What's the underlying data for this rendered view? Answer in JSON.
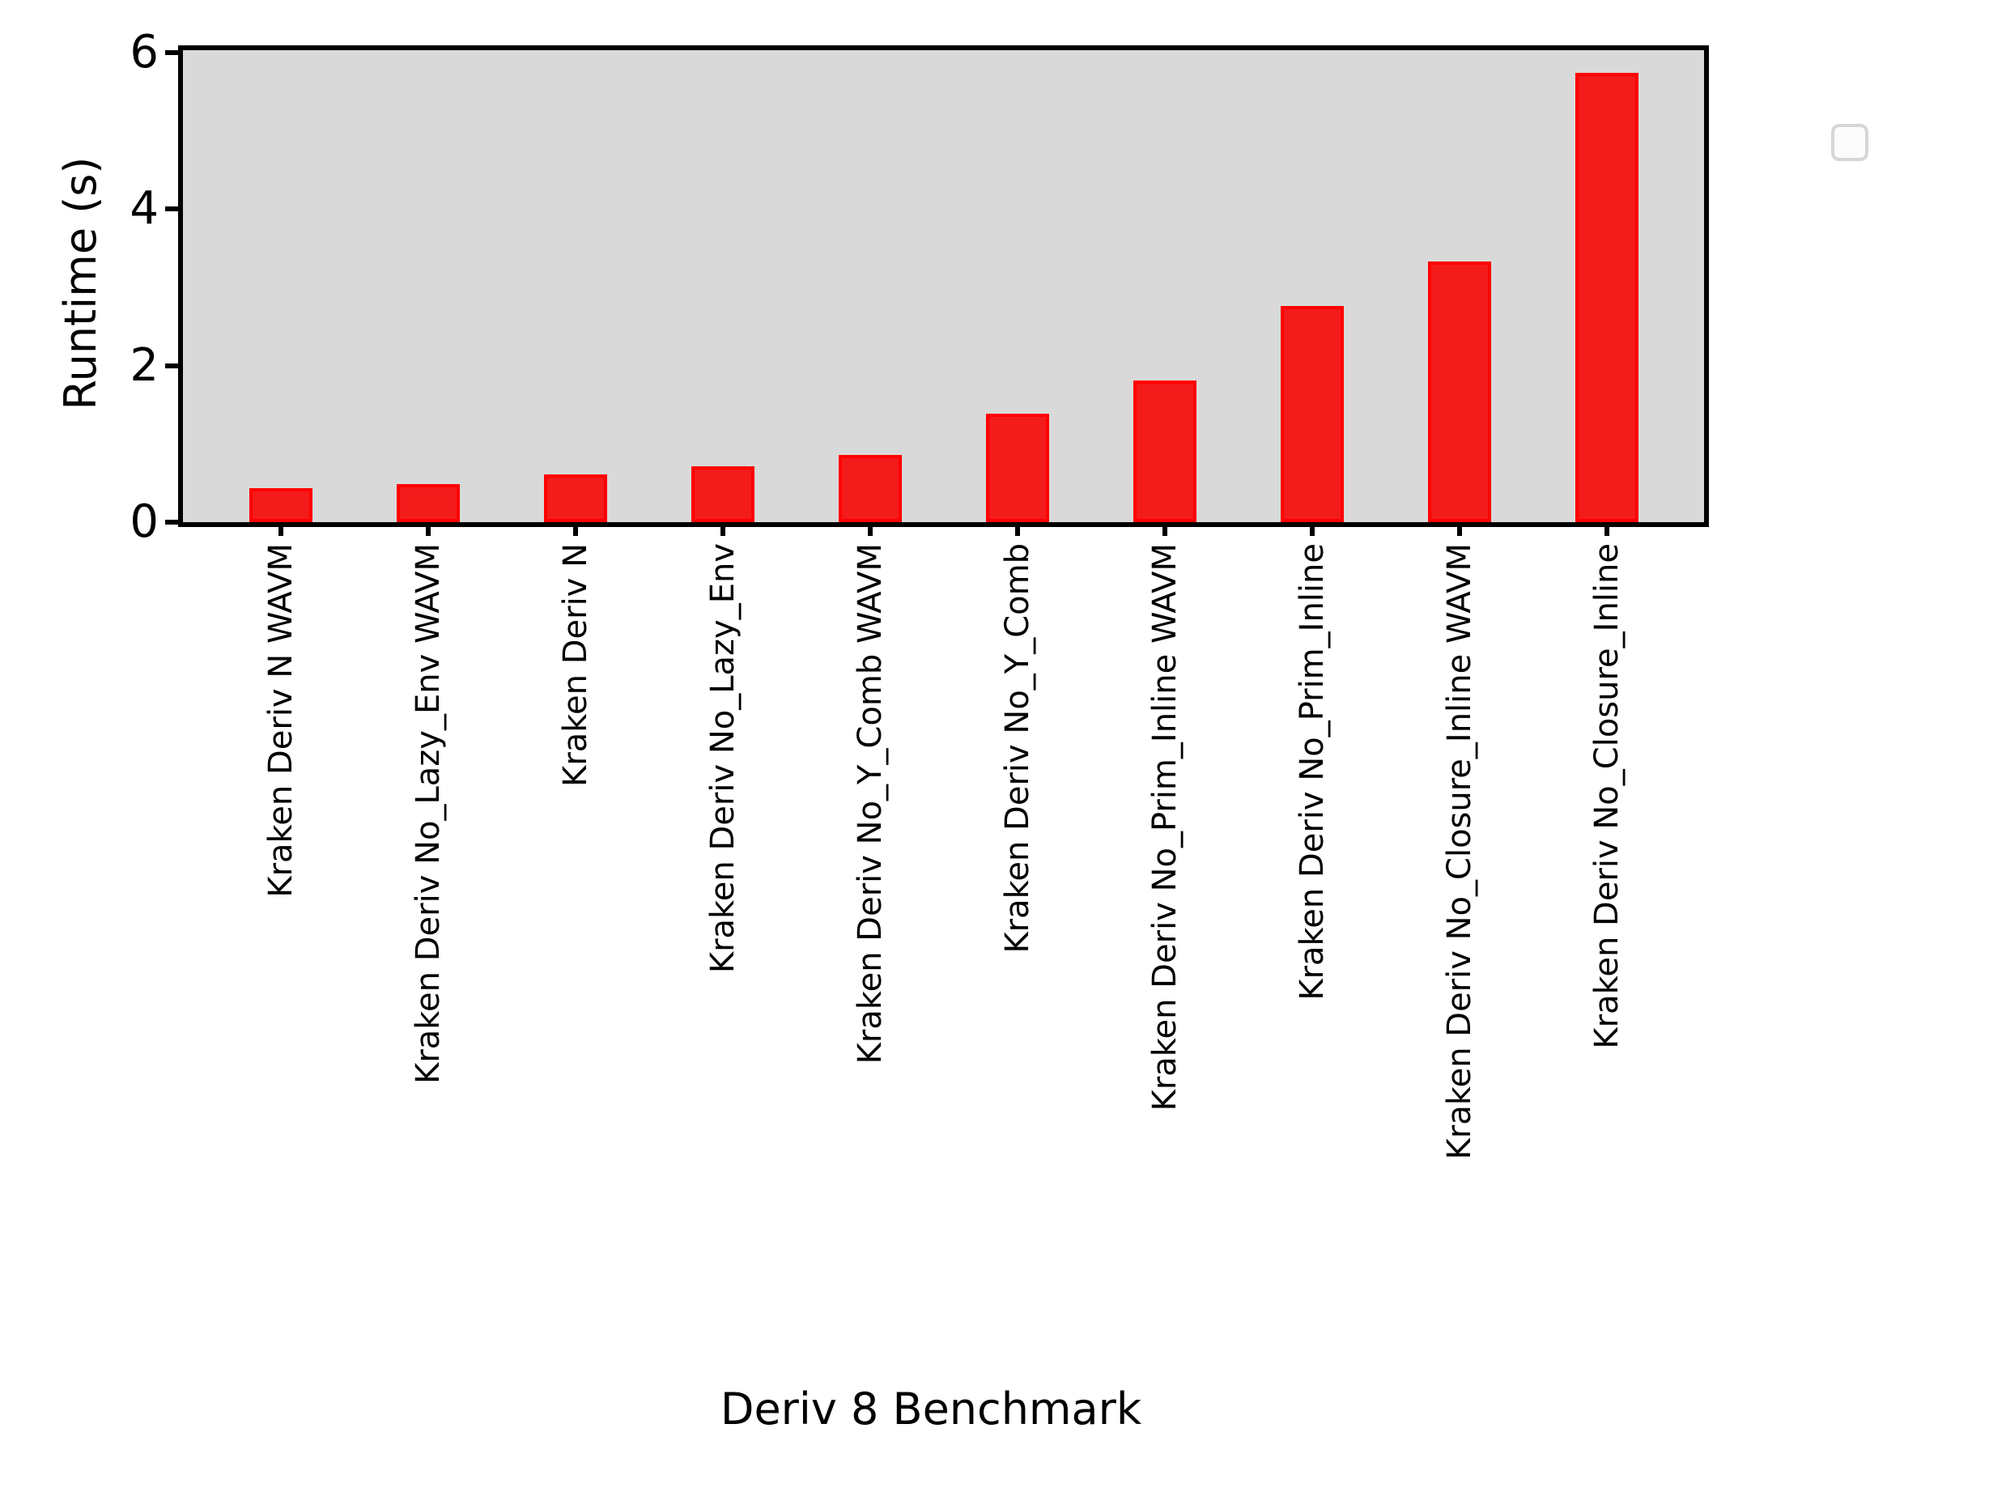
{
  "chart_data": {
    "type": "bar",
    "title": "",
    "xlabel": "Deriv 8 Benchmark",
    "ylabel": "Runtime (s)",
    "categories": [
      "Kraken Deriv N WAVM",
      "Kraken Deriv No_Lazy_Env WAVM",
      "Kraken Deriv N",
      "Kraken Deriv No_Lazy_Env",
      "Kraken Deriv No_Y_Comb WAVM",
      "Kraken Deriv No_Y_Comb",
      "Kraken Deriv No_Prim_Inline WAVM",
      "Kraken Deriv No_Prim_Inline",
      "Kraken Deriv No_Closure_Inline WAVM",
      "Kraken Deriv No_Closure_Inline"
    ],
    "values": [
      0.43,
      0.49,
      0.61,
      0.71,
      0.86,
      1.39,
      1.81,
      2.76,
      3.33,
      5.74
    ],
    "ylim": [
      0,
      6
    ],
    "yticks": [
      "0",
      "2",
      "4",
      "6"
    ],
    "grid": false,
    "legend": {
      "visible": true,
      "position": "upper right",
      "entries": []
    },
    "colors": {
      "bar_fill": "#f41b1b",
      "bar_edge": "#ff0000",
      "plot_background": "#d9d9d9",
      "figure_background": "#ffffff",
      "axis_color": "#000000",
      "text_color": "#000000",
      "legend_fill": "#fbfbfb",
      "legend_border": "#d6d6d6"
    }
  }
}
